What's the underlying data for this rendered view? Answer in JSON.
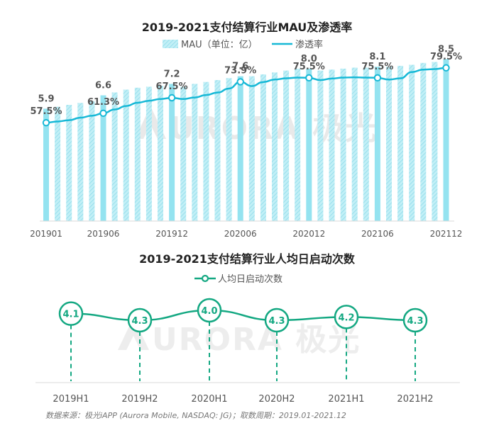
{
  "colors": {
    "bar": "#94E3F0",
    "bar_hatch": "#C2EFF6",
    "penetration_line": "#16B8D6",
    "daily_line": "#14A882",
    "label_text": "#555555",
    "title_text": "#222222",
    "axis_text": "#555555",
    "watermark": "#E6E6E6"
  },
  "watermark": "URORA 极光",
  "source_note": "数据来源：极光iAPP (Aurora Mobile, NASDAQ: JG)；取数周期：2019.01-2021.12",
  "chart_data": [
    {
      "type": "bar",
      "title": "2019-2021支付结算行业MAU及渗透率",
      "legend": [
        "MAU（单位：亿）",
        "渗透率"
      ],
      "legend_position": "top-center",
      "grid": false,
      "x_tick_labels": [
        "201901",
        "201906",
        "201912",
        "202006",
        "202012",
        "202106",
        "202112"
      ],
      "x_tick_index": [
        0,
        5,
        11,
        17,
        23,
        29,
        35
      ],
      "ylim": [
        0,
        9
      ],
      "series": [
        {
          "name": "MAU（单位：亿）",
          "type": "bar",
          "labels": [
            {
              "index": 0,
              "text": "5.9"
            },
            {
              "index": 5,
              "text": "6.6"
            },
            {
              "index": 11,
              "text": "7.2"
            },
            {
              "index": 17,
              "text": "7.6"
            },
            {
              "index": 23,
              "text": "8.0"
            },
            {
              "index": 29,
              "text": "8.1"
            },
            {
              "index": 35,
              "text": "8.5"
            }
          ],
          "values": [
            5.9,
            6.0,
            6.1,
            6.2,
            6.3,
            6.6,
            6.75,
            6.9,
            7.0,
            7.05,
            7.1,
            7.2,
            7.05,
            7.2,
            7.3,
            7.4,
            7.5,
            7.6,
            7.6,
            7.7,
            7.8,
            7.9,
            8.0,
            8.0,
            7.9,
            7.95,
            8.0,
            8.05,
            8.05,
            8.1,
            8.1,
            8.15,
            8.2,
            8.3,
            8.35,
            8.5
          ]
        },
        {
          "name": "渗透率",
          "type": "line",
          "ylim": [
            50,
            85
          ],
          "labels": [
            {
              "index": 0,
              "text": "57.5%"
            },
            {
              "index": 5,
              "text": "61.3%"
            },
            {
              "index": 11,
              "text": "67.5%"
            },
            {
              "index": 17,
              "text": "73.9%"
            },
            {
              "index": 23,
              "text": "75.5%"
            },
            {
              "index": 29,
              "text": "75.5%"
            },
            {
              "index": 35,
              "text": "79.5%"
            }
          ],
          "values": [
            57.5,
            58.0,
            58.5,
            59.5,
            60.3,
            61.3,
            62.8,
            64.2,
            65.5,
            66.3,
            67.0,
            67.5,
            67.0,
            67.6,
            68.6,
            69.6,
            71.2,
            73.9,
            72.2,
            73.8,
            74.8,
            75.3,
            75.6,
            75.5,
            74.6,
            75.2,
            75.6,
            75.7,
            75.6,
            75.5,
            74.8,
            75.3,
            77.8,
            78.8,
            79.0,
            79.5
          ]
        }
      ]
    },
    {
      "type": "line",
      "title": "2019-2021支付结算行业人均日启动次数",
      "legend": [
        "人均日启动次数"
      ],
      "legend_position": "top-center",
      "grid": false,
      "categories": [
        "2019H1",
        "2019H2",
        "2020H1",
        "2020H2",
        "2021H1",
        "2021H2"
      ],
      "ylim": [
        3.5,
        4.6
      ],
      "series": [
        {
          "name": "人均日启动次数",
          "values": [
            4.1,
            4.3,
            4.0,
            4.3,
            4.2,
            4.3
          ],
          "labels": [
            "4.1",
            "4.3",
            "4.0",
            "4.3",
            "4.2",
            "4.3"
          ]
        }
      ]
    }
  ]
}
